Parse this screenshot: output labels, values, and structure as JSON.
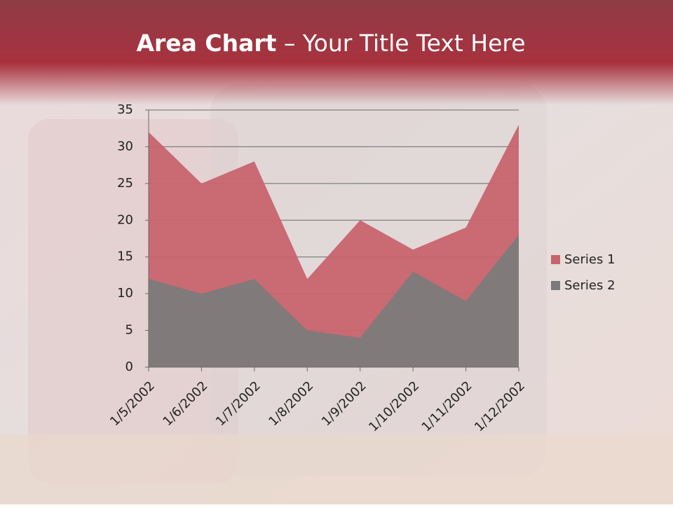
{
  "chart_data": {
    "type": "area",
    "title_parts": [
      "Area Chart",
      " – Your Title Text Here"
    ],
    "categories": [
      "1/5/2002",
      "1/6/2002",
      "1/7/2002",
      "1/8/2002",
      "1/9/2002",
      "1/10/2002",
      "1/11/2002",
      "1/12/2002"
    ],
    "series": [
      {
        "name": "Series 1",
        "color": "#c8646e",
        "values": [
          32,
          25,
          28,
          12,
          20,
          16,
          19,
          33
        ]
      },
      {
        "name": "Series 2",
        "color": "#7b7b7b",
        "values": [
          12,
          10,
          12,
          5,
          4,
          13,
          9,
          18
        ]
      }
    ],
    "ylim": [
      0,
      35
    ],
    "yticks": [
      0,
      5,
      10,
      15,
      20,
      25,
      30,
      35
    ],
    "grid": true,
    "legend": "right"
  }
}
